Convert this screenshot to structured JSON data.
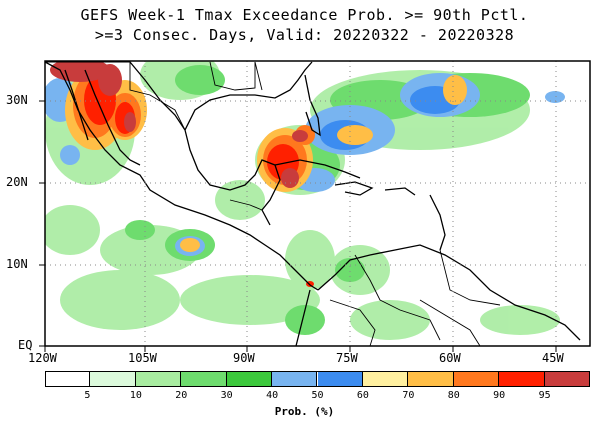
{
  "title_line1": "GEFS Week-1 Tmax Exceedance Prob. >= 90th Pctl.",
  "title_line2": ">=3 Consec. Days, Valid: 20220322 - 20220328",
  "lat_labels": [
    "30N",
    "20N",
    "10N",
    "EQ"
  ],
  "lon_labels": [
    "120W",
    "105W",
    "90W",
    "75W",
    "60W",
    "45W"
  ],
  "colorbar": {
    "title": "Prob. (%)",
    "ticks": [
      "5",
      "10",
      "20",
      "30",
      "40",
      "50",
      "60",
      "70",
      "80",
      "90",
      "95"
    ],
    "colors": [
      "#ffffff",
      "#dcfadc",
      "#a8eca0",
      "#6edc6e",
      "#3cc83c",
      "#78b4f0",
      "#3c8cf0",
      "#fff0a0",
      "#ffbe46",
      "#ff781e",
      "#ff2000",
      "#c83c3c"
    ]
  }
}
